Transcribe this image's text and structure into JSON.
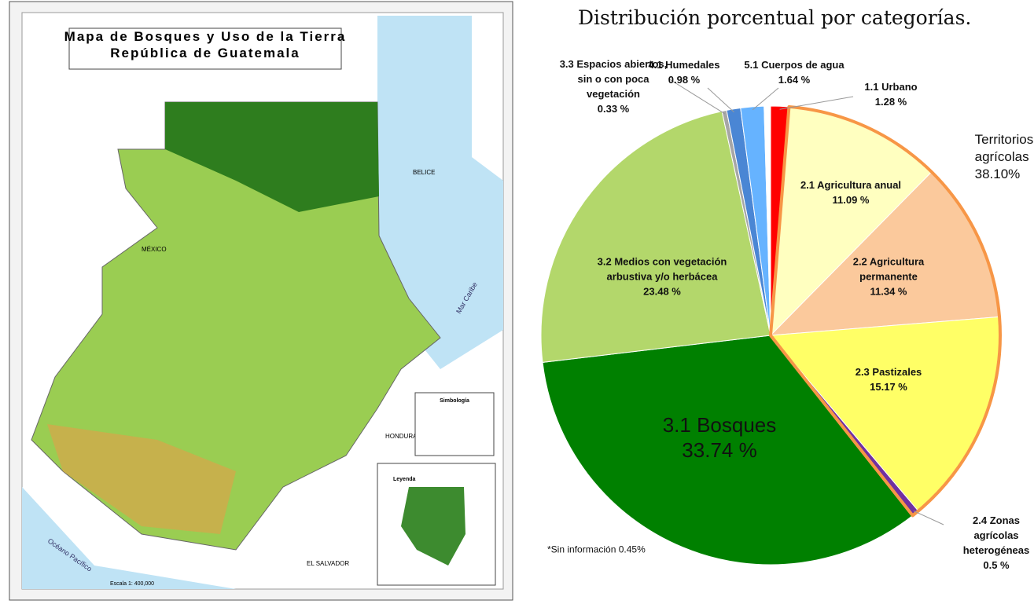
{
  "map": {
    "title": "Mapa de Bosques y Uso de la Tierra",
    "subtitle": "República de Guatemala",
    "places": [
      "MÉXICO",
      "BELICE",
      "HONDURAS",
      "EL SALVADOR",
      "Mar Caribe",
      "Océano Pacífico"
    ],
    "legend_title": "Simbología",
    "inset_title": "Leyenda",
    "scale": "Escala 1: 400,000"
  },
  "chart_data": {
    "type": "pie",
    "title": "Distribución porcentual por categorías.",
    "categories": [
      "1.1 Urbano",
      "2.1 Agricultura anual",
      "2.2 Agricultura permanente",
      "2.3 Pastizales",
      "2.4 Zonas agrícolas heterogéneas",
      "3.1 Bosques",
      "3.2 Medios con vegetación arbustiva y/o herbácea",
      "3.3 Espacios abiertos, sin o con poca vegetación",
      "4.1 Humedales",
      "5.1 Cuerpos de agua",
      "*Sin información"
    ],
    "values": [
      1.28,
      11.09,
      11.34,
      15.17,
      0.5,
      33.74,
      23.48,
      0.33,
      0.98,
      1.64,
      0.45
    ],
    "value_labels": [
      "1.28 %",
      "11.09 %",
      "11.34 %",
      "15.17 %",
      "0.5 %",
      "33.74 %",
      "23.48 %",
      "0.33 %",
      "0.98 %",
      "1.64 %",
      "0.45%"
    ],
    "colors": [
      "#ff0000",
      "#ffffc0",
      "#fbc99c",
      "#ffff66",
      "#7030a0",
      "#008000",
      "#b3d76b",
      "#a6a6a6",
      "#4a86d4",
      "#66b3ff",
      "#ffffff"
    ],
    "groups": [
      {
        "name": "Territorios agrícolas",
        "value": 38.1,
        "value_label": "38.10%",
        "color": "#f79646"
      }
    ]
  }
}
